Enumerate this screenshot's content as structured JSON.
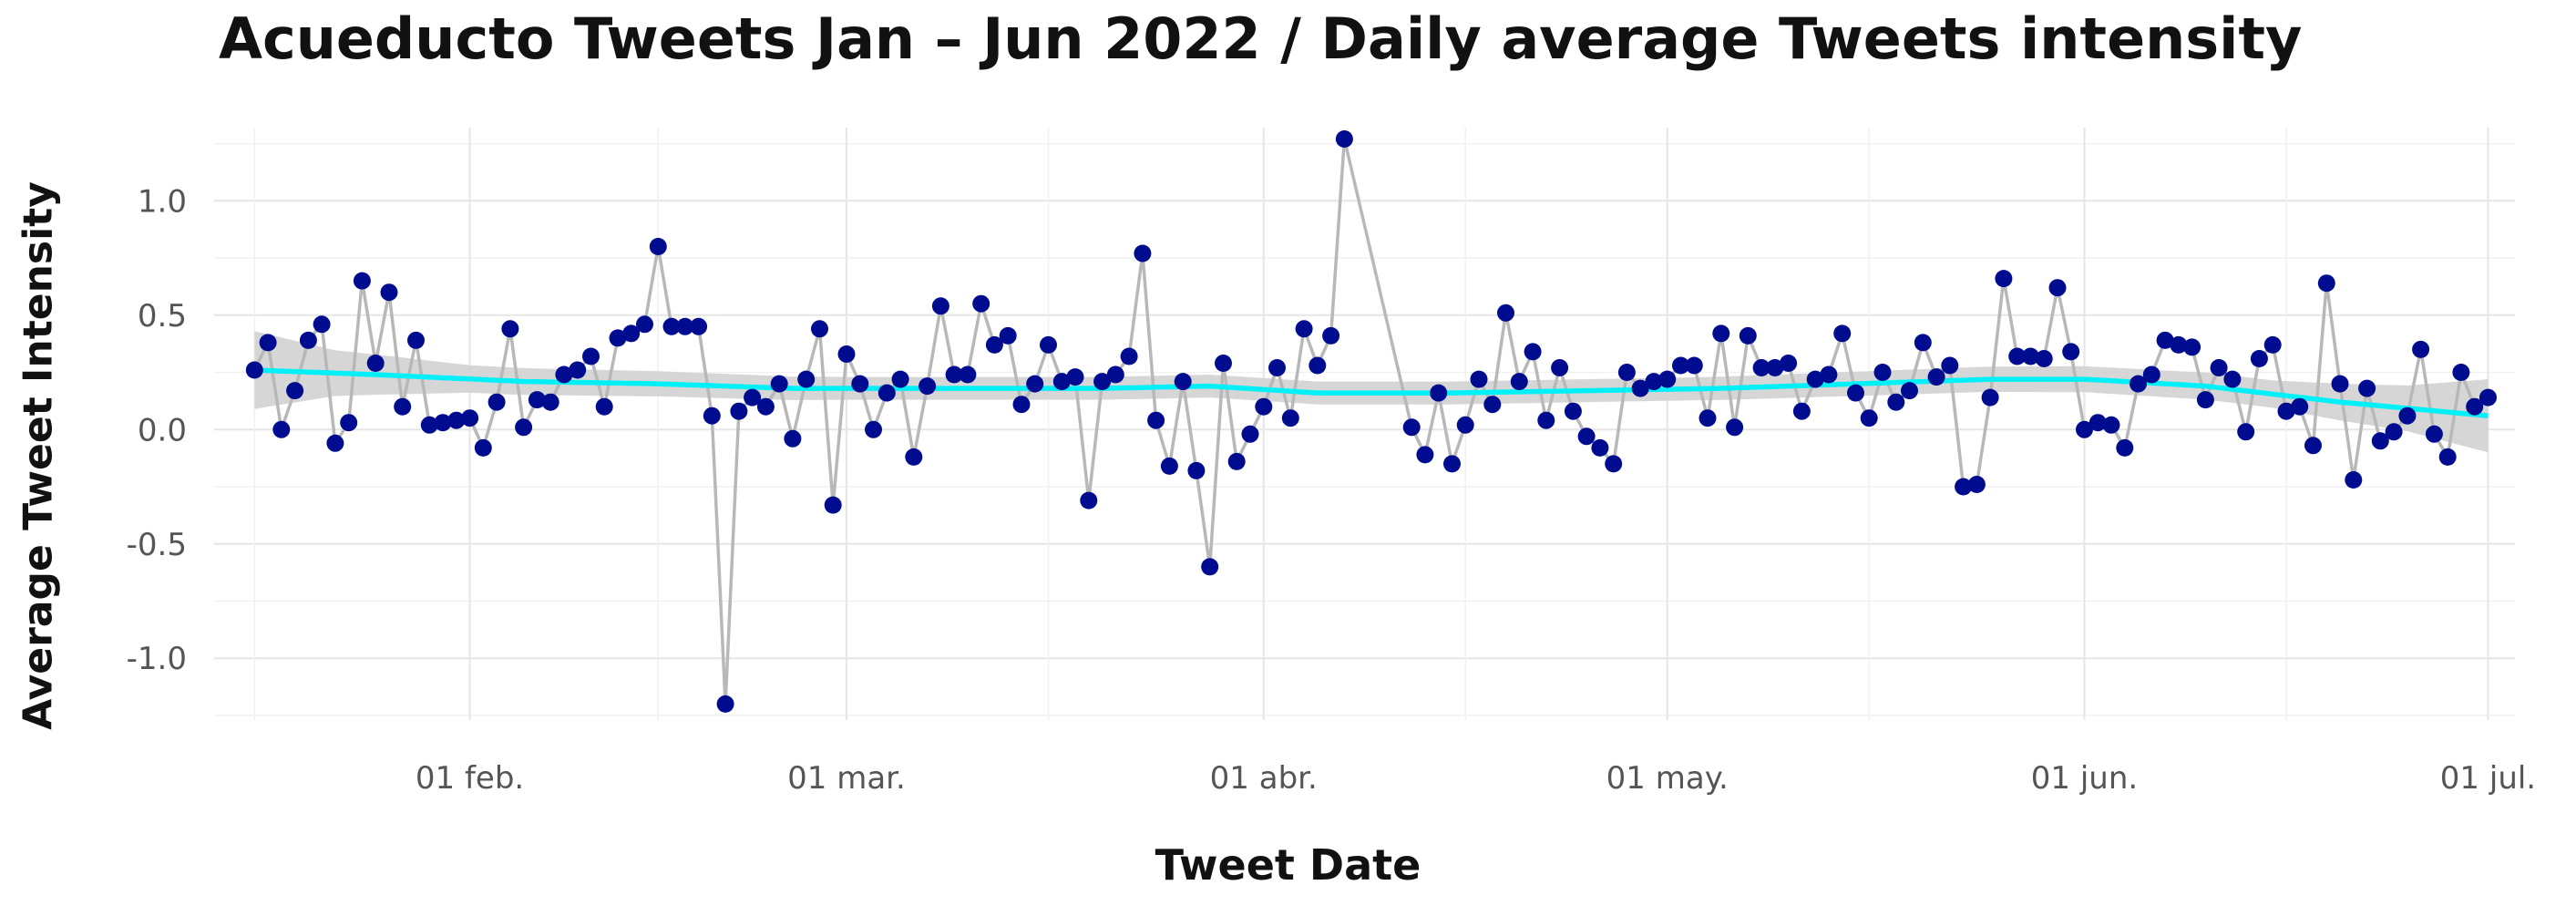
{
  "chart_data": {
    "type": "scatter",
    "title": "Acueducto Tweets Jan – Jun 2022 / Daily average Tweets intensity",
    "xlabel": "Tweet Date",
    "ylabel": "Average Tweet Intensity",
    "xlim": [
      "2022-01-13",
      "2022-07-03"
    ],
    "ylim": [
      -1.27,
      1.32
    ],
    "grid": true,
    "x_ticks": [
      {
        "date": "2022-02-01",
        "label": "01 feb."
      },
      {
        "date": "2022-03-01",
        "label": "01 mar."
      },
      {
        "date": "2022-04-01",
        "label": "01 abr."
      },
      {
        "date": "2022-05-01",
        "label": "01 may."
      },
      {
        "date": "2022-06-01",
        "label": "01 jun."
      },
      {
        "date": "2022-07-01",
        "label": "01 jul."
      }
    ],
    "y_ticks": [
      {
        "value": 1.0,
        "label": "1.0"
      },
      {
        "value": 0.5,
        "label": "0.5"
      },
      {
        "value": 0.0,
        "label": "0.0"
      },
      {
        "value": -0.5,
        "label": "-0.5"
      },
      {
        "value": -1.0,
        "label": "-1.0"
      }
    ],
    "point_color": "#000c8f",
    "line_color": "#b8b8b8",
    "smooth_color": "#00f0f8",
    "band_color": "#d2d2d2",
    "points": [
      [
        "2022-01-16",
        0.26
      ],
      [
        "2022-01-17",
        0.38
      ],
      [
        "2022-01-18",
        0.0
      ],
      [
        "2022-01-19",
        0.17
      ],
      [
        "2022-01-20",
        0.39
      ],
      [
        "2022-01-21",
        0.46
      ],
      [
        "2022-01-22",
        -0.06
      ],
      [
        "2022-01-23",
        0.03
      ],
      [
        "2022-01-24",
        0.65
      ],
      [
        "2022-01-25",
        0.29
      ],
      [
        "2022-01-26",
        0.6
      ],
      [
        "2022-01-27",
        0.1
      ],
      [
        "2022-01-28",
        0.39
      ],
      [
        "2022-01-29",
        0.02
      ],
      [
        "2022-01-30",
        0.03
      ],
      [
        "2022-01-31",
        0.04
      ],
      [
        "2022-02-01",
        0.05
      ],
      [
        "2022-02-02",
        -0.08
      ],
      [
        "2022-02-03",
        0.12
      ],
      [
        "2022-02-04",
        0.44
      ],
      [
        "2022-02-05",
        0.01
      ],
      [
        "2022-02-06",
        0.13
      ],
      [
        "2022-02-07",
        0.12
      ],
      [
        "2022-02-08",
        0.24
      ],
      [
        "2022-02-09",
        0.26
      ],
      [
        "2022-02-10",
        0.32
      ],
      [
        "2022-02-11",
        0.1
      ],
      [
        "2022-02-12",
        0.4
      ],
      [
        "2022-02-13",
        0.42
      ],
      [
        "2022-02-14",
        0.46
      ],
      [
        "2022-02-15",
        0.8
      ],
      [
        "2022-02-16",
        0.45
      ],
      [
        "2022-02-17",
        0.45
      ],
      [
        "2022-02-18",
        0.45
      ],
      [
        "2022-02-19",
        0.06
      ],
      [
        "2022-02-20",
        -1.2
      ],
      [
        "2022-02-21",
        0.08
      ],
      [
        "2022-02-22",
        0.14
      ],
      [
        "2022-02-23",
        0.1
      ],
      [
        "2022-02-24",
        0.2
      ],
      [
        "2022-02-25",
        -0.04
      ],
      [
        "2022-02-26",
        0.22
      ],
      [
        "2022-02-27",
        0.44
      ],
      [
        "2022-02-28",
        -0.33
      ],
      [
        "2022-03-01",
        0.33
      ],
      [
        "2022-03-02",
        0.2
      ],
      [
        "2022-03-03",
        0.0
      ],
      [
        "2022-03-04",
        0.16
      ],
      [
        "2022-03-05",
        0.22
      ],
      [
        "2022-03-06",
        -0.12
      ],
      [
        "2022-03-07",
        0.19
      ],
      [
        "2022-03-08",
        0.54
      ],
      [
        "2022-03-09",
        0.24
      ],
      [
        "2022-03-10",
        0.24
      ],
      [
        "2022-03-11",
        0.55
      ],
      [
        "2022-03-12",
        0.37
      ],
      [
        "2022-03-13",
        0.41
      ],
      [
        "2022-03-14",
        0.11
      ],
      [
        "2022-03-15",
        0.2
      ],
      [
        "2022-03-16",
        0.37
      ],
      [
        "2022-03-17",
        0.21
      ],
      [
        "2022-03-18",
        0.23
      ],
      [
        "2022-03-19",
        -0.31
      ],
      [
        "2022-03-20",
        0.21
      ],
      [
        "2022-03-21",
        0.24
      ],
      [
        "2022-03-22",
        0.32
      ],
      [
        "2022-03-23",
        0.77
      ],
      [
        "2022-03-24",
        0.04
      ],
      [
        "2022-03-25",
        -0.16
      ],
      [
        "2022-03-26",
        0.21
      ],
      [
        "2022-03-27",
        -0.18
      ],
      [
        "2022-03-28",
        -0.6
      ],
      [
        "2022-03-29",
        0.29
      ],
      [
        "2022-03-30",
        -0.14
      ],
      [
        "2022-03-31",
        -0.02
      ],
      [
        "2022-04-01",
        0.1
      ],
      [
        "2022-04-02",
        0.27
      ],
      [
        "2022-04-03",
        0.05
      ],
      [
        "2022-04-04",
        0.44
      ],
      [
        "2022-04-05",
        0.28
      ],
      [
        "2022-04-06",
        0.41
      ],
      [
        "2022-04-07",
        1.27
      ],
      [
        "2022-04-12",
        0.01
      ],
      [
        "2022-04-13",
        -0.11
      ],
      [
        "2022-04-14",
        0.16
      ],
      [
        "2022-04-15",
        -0.15
      ],
      [
        "2022-04-16",
        0.02
      ],
      [
        "2022-04-17",
        0.22
      ],
      [
        "2022-04-18",
        0.11
      ],
      [
        "2022-04-19",
        0.51
      ],
      [
        "2022-04-20",
        0.21
      ],
      [
        "2022-04-21",
        0.34
      ],
      [
        "2022-04-22",
        0.04
      ],
      [
        "2022-04-23",
        0.27
      ],
      [
        "2022-04-24",
        0.08
      ],
      [
        "2022-04-25",
        -0.03
      ],
      [
        "2022-04-26",
        -0.08
      ],
      [
        "2022-04-27",
        -0.15
      ],
      [
        "2022-04-28",
        0.25
      ],
      [
        "2022-04-29",
        0.18
      ],
      [
        "2022-04-30",
        0.21
      ],
      [
        "2022-05-01",
        0.22
      ],
      [
        "2022-05-02",
        0.28
      ],
      [
        "2022-05-03",
        0.28
      ],
      [
        "2022-05-04",
        0.05
      ],
      [
        "2022-05-05",
        0.42
      ],
      [
        "2022-05-06",
        0.01
      ],
      [
        "2022-05-07",
        0.41
      ],
      [
        "2022-05-08",
        0.27
      ],
      [
        "2022-05-09",
        0.27
      ],
      [
        "2022-05-10",
        0.29
      ],
      [
        "2022-05-11",
        0.08
      ],
      [
        "2022-05-12",
        0.22
      ],
      [
        "2022-05-13",
        0.24
      ],
      [
        "2022-05-14",
        0.42
      ],
      [
        "2022-05-15",
        0.16
      ],
      [
        "2022-05-16",
        0.05
      ],
      [
        "2022-05-17",
        0.25
      ],
      [
        "2022-05-18",
        0.12
      ],
      [
        "2022-05-19",
        0.17
      ],
      [
        "2022-05-20",
        0.38
      ],
      [
        "2022-05-21",
        0.23
      ],
      [
        "2022-05-22",
        0.28
      ],
      [
        "2022-05-23",
        -0.25
      ],
      [
        "2022-05-24",
        -0.24
      ],
      [
        "2022-05-25",
        0.14
      ],
      [
        "2022-05-26",
        0.66
      ],
      [
        "2022-05-27",
        0.32
      ],
      [
        "2022-05-28",
        0.32
      ],
      [
        "2022-05-29",
        0.31
      ],
      [
        "2022-05-30",
        0.62
      ],
      [
        "2022-05-31",
        0.34
      ],
      [
        "2022-06-01",
        0.0
      ],
      [
        "2022-06-02",
        0.03
      ],
      [
        "2022-06-03",
        0.02
      ],
      [
        "2022-06-04",
        -0.08
      ],
      [
        "2022-06-05",
        0.2
      ],
      [
        "2022-06-06",
        0.24
      ],
      [
        "2022-06-07",
        0.39
      ],
      [
        "2022-06-08",
        0.37
      ],
      [
        "2022-06-09",
        0.36
      ],
      [
        "2022-06-10",
        0.13
      ],
      [
        "2022-06-11",
        0.27
      ],
      [
        "2022-06-12",
        0.22
      ],
      [
        "2022-06-13",
        -0.01
      ],
      [
        "2022-06-14",
        0.31
      ],
      [
        "2022-06-15",
        0.37
      ],
      [
        "2022-06-16",
        0.08
      ],
      [
        "2022-06-17",
        0.1
      ],
      [
        "2022-06-18",
        -0.07
      ],
      [
        "2022-06-19",
        0.64
      ],
      [
        "2022-06-20",
        0.2
      ],
      [
        "2022-06-21",
        -0.22
      ],
      [
        "2022-06-22",
        0.18
      ],
      [
        "2022-06-23",
        -0.05
      ],
      [
        "2022-06-24",
        -0.01
      ],
      [
        "2022-06-25",
        0.06
      ],
      [
        "2022-06-26",
        0.35
      ],
      [
        "2022-06-27",
        -0.02
      ],
      [
        "2022-06-28",
        -0.12
      ],
      [
        "2022-06-29",
        0.25
      ],
      [
        "2022-06-30",
        0.1
      ],
      [
        "2022-07-01",
        0.14
      ]
    ],
    "smooth": [
      [
        "2022-01-16",
        0.26
      ],
      [
        "2022-01-25",
        0.24
      ],
      [
        "2022-02-05",
        0.21
      ],
      [
        "2022-02-15",
        0.2
      ],
      [
        "2022-02-25",
        0.18
      ],
      [
        "2022-03-10",
        0.18
      ],
      [
        "2022-03-20",
        0.18
      ],
      [
        "2022-03-28",
        0.19
      ],
      [
        "2022-04-05",
        0.16
      ],
      [
        "2022-04-15",
        0.16
      ],
      [
        "2022-04-25",
        0.17
      ],
      [
        "2022-05-05",
        0.18
      ],
      [
        "2022-05-15",
        0.2
      ],
      [
        "2022-05-25",
        0.22
      ],
      [
        "2022-06-01",
        0.22
      ],
      [
        "2022-06-10",
        0.19
      ],
      [
        "2022-06-20",
        0.12
      ],
      [
        "2022-07-01",
        0.06
      ]
    ],
    "band_halfwidth": [
      [
        "2022-01-16",
        0.17
      ],
      [
        "2022-01-22",
        0.1
      ],
      [
        "2022-02-01",
        0.06
      ],
      [
        "2022-03-01",
        0.05
      ],
      [
        "2022-05-01",
        0.05
      ],
      [
        "2022-06-15",
        0.06
      ],
      [
        "2022-06-25",
        0.1
      ],
      [
        "2022-07-01",
        0.16
      ]
    ]
  }
}
